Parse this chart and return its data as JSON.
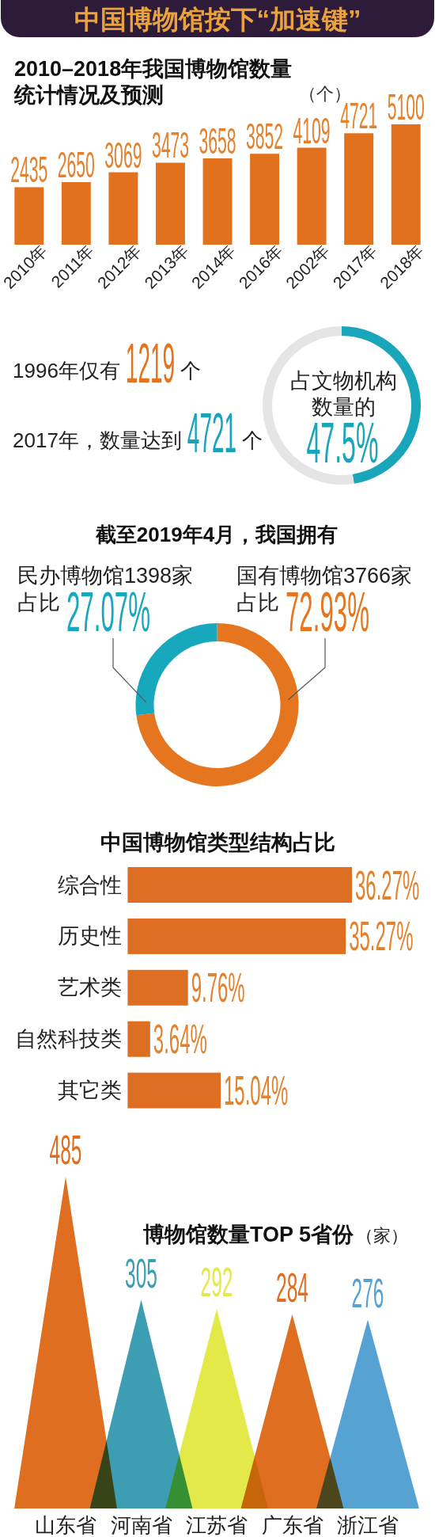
{
  "chart_data": [
    {
      "type": "bar",
      "title": "中国博物馆按下“加速键”",
      "subtitle": "2010–2018年我国博物馆数量统计情况及预测",
      "ylabel": "（个）",
      "categories": [
        "2010年",
        "2011年",
        "2012年",
        "2013年",
        "2014年",
        "2016年",
        "2002年",
        "2017年",
        "2018年"
      ],
      "values": [
        2435,
        2650,
        3069,
        3473,
        3658,
        3852,
        4109,
        4721,
        5100
      ],
      "color": "#e2711d",
      "data_labels": true
    },
    {
      "type": "other",
      "annotations": [
        "1996年仅有",
        "1219",
        "个",
        "2017年，数量达到",
        "4721",
        "个"
      ]
    },
    {
      "type": "donut",
      "title": "占文物机构数量的",
      "categories": [
        null,
        null
      ],
      "values": [
        47.5,
        52.5
      ],
      "colors": [
        "#19a5ba",
        "#e5e5e5"
      ],
      "value_labels": [
        "47.5%",
        null
      ]
    },
    {
      "type": "donut",
      "title": "截至2019年4月，我国拥有",
      "categories": [
        "国有博物馆3766家",
        "民办博物馆1398家"
      ],
      "values": [
        72.93,
        27.07
      ],
      "colors": [
        "#e5761f",
        "#18a8bd"
      ],
      "value_labels": [
        "72.93%",
        "27.07%"
      ],
      "annotations": [
        "占比",
        "占比"
      ]
    },
    {
      "type": "bar",
      "orientation": "horizontal",
      "title": "中国博物馆类型结构占比",
      "categories": [
        "综合性",
        "历史性",
        "艺术类",
        "自然科技类",
        "其它类"
      ],
      "values": [
        36.27,
        35.27,
        9.76,
        3.64,
        15.04
      ],
      "color": "#de6f22",
      "value_labels": [
        "36.27%",
        "35.27%",
        "9.76%",
        "3.64%",
        "15.04%"
      ]
    },
    {
      "type": "bar",
      "title": "博物馆数量TOP 5省份",
      "ylabel": "（家）",
      "categories": [
        "山东省",
        "河南省",
        "江苏省",
        "广东省",
        "浙江省"
      ],
      "values": [
        485,
        305,
        292,
        284,
        276
      ],
      "colors": [
        "#df6e21",
        "#3d9db3",
        "#e4e94a",
        "#df6e21",
        "#55a2d3"
      ],
      "data_labels": true
    }
  ]
}
